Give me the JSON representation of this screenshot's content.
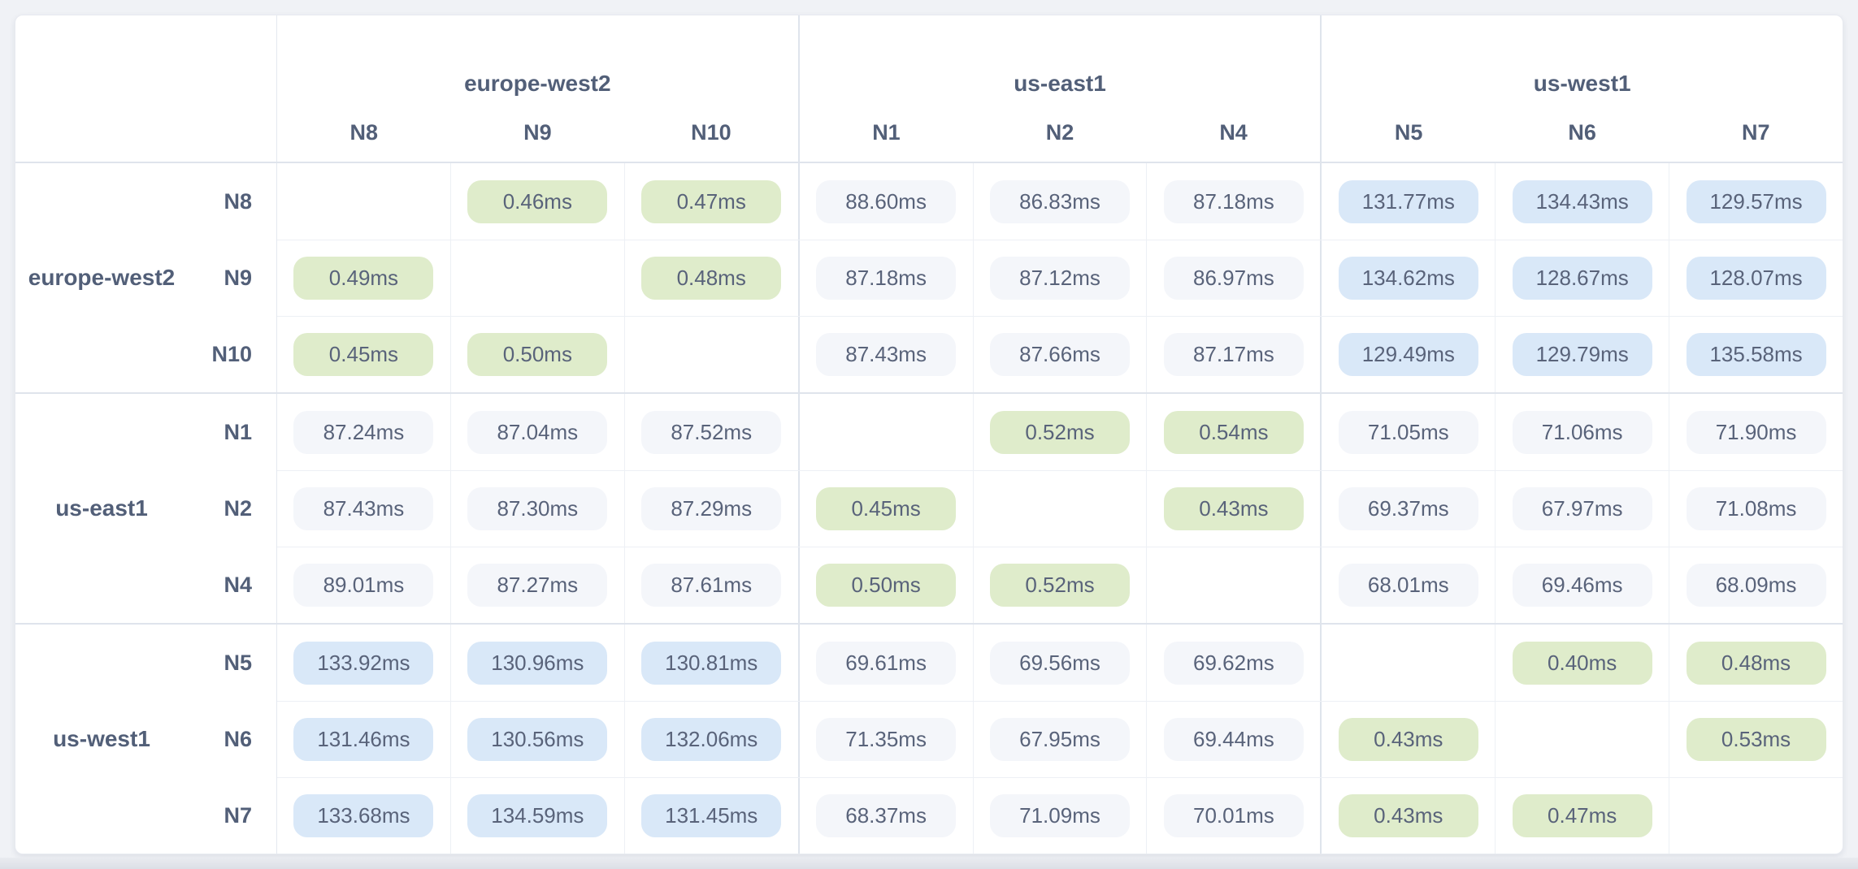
{
  "colors": {
    "page_bg": "#f0f2f6",
    "card_bg": "#ffffff",
    "pill_green": "#dfeccb",
    "pill_blue": "#d9e8f8",
    "pill_gray": "#f4f6fa",
    "text": "#59637a",
    "label_text": "#525f78",
    "border_light": "#edf0f5",
    "border_mid": "#e4e8ef",
    "border_strong": "#dfe4ec"
  },
  "chart_data": {
    "type": "heatmap",
    "unit": "ms",
    "description_title": "",
    "column_groups": [
      {
        "region": "europe-west2",
        "nodes": [
          "N8",
          "N9",
          "N10"
        ]
      },
      {
        "region": "us-east1",
        "nodes": [
          "N1",
          "N2",
          "N4"
        ]
      },
      {
        "region": "us-west1",
        "nodes": [
          "N5",
          "N6",
          "N7"
        ]
      }
    ],
    "row_groups": [
      {
        "region": "europe-west2",
        "rows": [
          {
            "node": "N8",
            "values": [
              null,
              "0.46ms",
              "0.47ms",
              "88.60ms",
              "86.83ms",
              "87.18ms",
              "131.77ms",
              "134.43ms",
              "129.57ms"
            ]
          },
          {
            "node": "N9",
            "values": [
              "0.49ms",
              null,
              "0.48ms",
              "87.18ms",
              "87.12ms",
              "86.97ms",
              "134.62ms",
              "128.67ms",
              "128.07ms"
            ]
          },
          {
            "node": "N10",
            "values": [
              "0.45ms",
              "0.50ms",
              null,
              "87.43ms",
              "87.66ms",
              "87.17ms",
              "129.49ms",
              "129.79ms",
              "135.58ms"
            ]
          }
        ]
      },
      {
        "region": "us-east1",
        "rows": [
          {
            "node": "N1",
            "values": [
              "87.24ms",
              "87.04ms",
              "87.52ms",
              null,
              "0.52ms",
              "0.54ms",
              "71.05ms",
              "71.06ms",
              "71.90ms"
            ]
          },
          {
            "node": "N2",
            "values": [
              "87.43ms",
              "87.30ms",
              "87.29ms",
              "0.45ms",
              null,
              "0.43ms",
              "69.37ms",
              "67.97ms",
              "71.08ms"
            ]
          },
          {
            "node": "N4",
            "values": [
              "89.01ms",
              "87.27ms",
              "87.61ms",
              "0.50ms",
              "0.52ms",
              null,
              "68.01ms",
              "69.46ms",
              "68.09ms"
            ]
          }
        ]
      },
      {
        "region": "us-west1",
        "rows": [
          {
            "node": "N5",
            "values": [
              "133.92ms",
              "130.96ms",
              "130.81ms",
              "69.61ms",
              "69.56ms",
              "69.62ms",
              null,
              "0.40ms",
              "0.48ms"
            ]
          },
          {
            "node": "N6",
            "values": [
              "131.46ms",
              "130.56ms",
              "132.06ms",
              "71.35ms",
              "67.95ms",
              "69.44ms",
              "0.43ms",
              null,
              "0.53ms"
            ]
          },
          {
            "node": "N7",
            "values": [
              "133.68ms",
              "134.59ms",
              "131.45ms",
              "68.37ms",
              "71.09ms",
              "70.01ms",
              "0.43ms",
              "0.47ms",
              null
            ]
          }
        ]
      }
    ],
    "color_rule": {
      "green_below_ms": 1,
      "blue_above_ms": 100
    }
  }
}
